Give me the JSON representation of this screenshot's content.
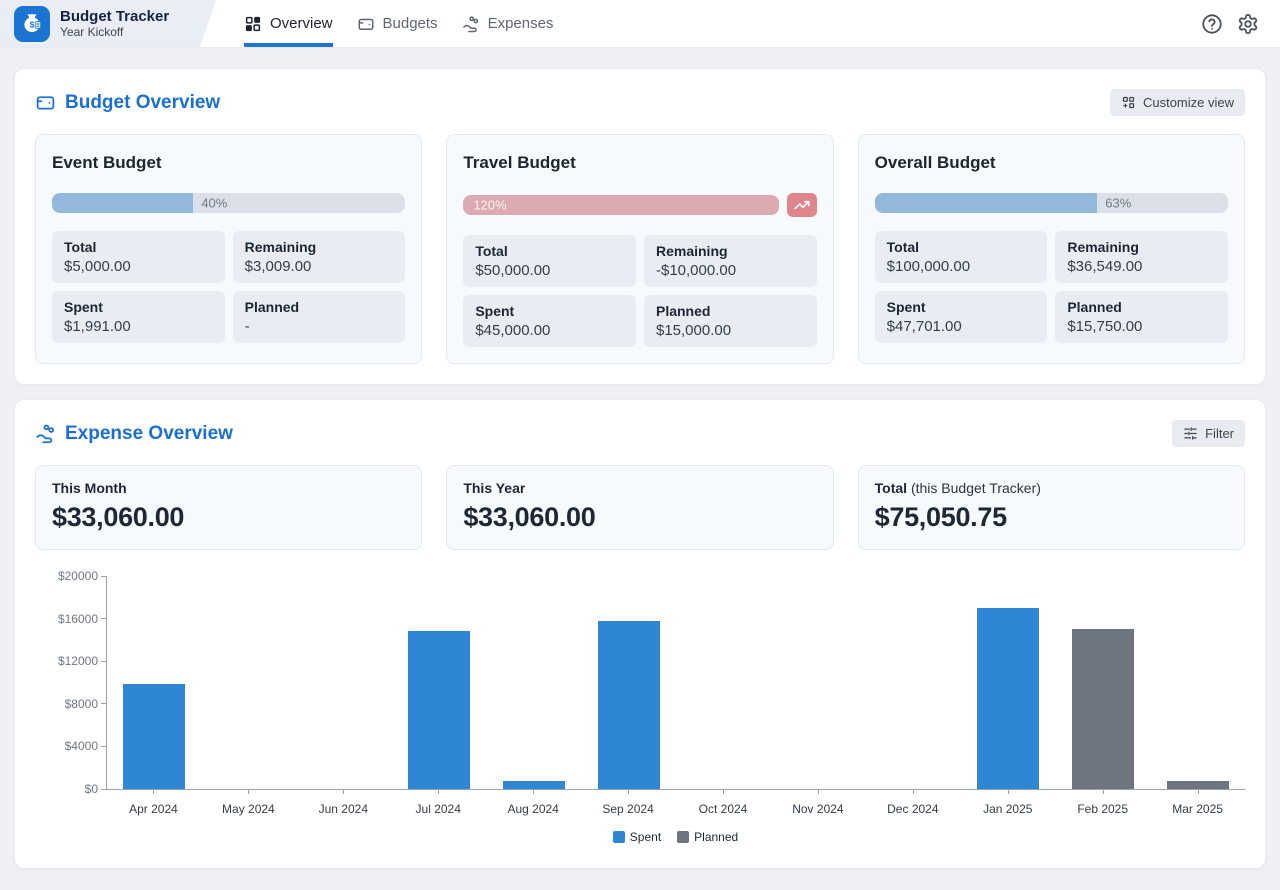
{
  "colors": {
    "accent_blue": "#1a6fd0",
    "logo_blue": "#1b74d2",
    "tab_underline": "#1b74d6",
    "progress_fill_blue": "#94b7dc",
    "progress_fill_over": "#dcaab1",
    "over_badge": "#df858c",
    "bar_spent": "#2e86d4",
    "bar_planned": "#6e7581"
  },
  "header": {
    "app_title": "Budget Tracker",
    "app_subtitle": "Year Kickoff",
    "tabs": [
      {
        "label": "Overview",
        "active": true
      },
      {
        "label": "Budgets",
        "active": false
      },
      {
        "label": "Expenses",
        "active": false
      }
    ]
  },
  "budget_overview": {
    "title": "Budget Overview",
    "customize_label": "Customize view",
    "cards": [
      {
        "title": "Event Budget",
        "percent": 40,
        "percent_label": "40%",
        "over_budget": false,
        "stats": [
          {
            "label": "Total",
            "value": "$5,000.00"
          },
          {
            "label": "Remaining",
            "value": "$3,009.00"
          },
          {
            "label": "Spent",
            "value": "$1,991.00"
          },
          {
            "label": "Planned",
            "value": "-"
          }
        ]
      },
      {
        "title": "Travel Budget",
        "percent": 120,
        "percent_label": "120%",
        "over_budget": true,
        "stats": [
          {
            "label": "Total",
            "value": "$50,000.00"
          },
          {
            "label": "Remaining",
            "value": "-$10,000.00"
          },
          {
            "label": "Spent",
            "value": "$45,000.00"
          },
          {
            "label": "Planned",
            "value": "$15,000.00"
          }
        ]
      },
      {
        "title": "Overall Budget",
        "percent": 63,
        "percent_label": "63%",
        "over_budget": false,
        "stats": [
          {
            "label": "Total",
            "value": "$100,000.00"
          },
          {
            "label": "Remaining",
            "value": "$36,549.00"
          },
          {
            "label": "Spent",
            "value": "$47,701.00"
          },
          {
            "label": "Planned",
            "value": "$15,750.00"
          }
        ]
      }
    ]
  },
  "expense_overview": {
    "title": "Expense Overview",
    "filter_label": "Filter",
    "summary_cards": [
      {
        "label": "This Month",
        "label_suffix": "",
        "value": "$33,060.00"
      },
      {
        "label": "This Year",
        "label_suffix": "",
        "value": "$33,060.00"
      },
      {
        "label": "Total",
        "label_suffix": " (this Budget Tracker)",
        "value": "$75,050.75"
      }
    ]
  },
  "chart_data": {
    "type": "bar",
    "title": "",
    "xlabel": "",
    "ylabel": "",
    "categories": [
      "Apr 2024",
      "May 2024",
      "Jun 2024",
      "Jul 2024",
      "Aug 2024",
      "Sep 2024",
      "Oct 2024",
      "Nov 2024",
      "Dec 2024",
      "Jan 2025",
      "Feb 2025",
      "Mar 2025"
    ],
    "series": [
      {
        "name": "Spent",
        "color": "#2e86d4",
        "values": [
          9900,
          0,
          0,
          14800,
          750,
          15750,
          0,
          0,
          0,
          17000,
          0,
          0
        ]
      },
      {
        "name": "Planned",
        "color": "#6e7581",
        "values": [
          0,
          0,
          0,
          0,
          0,
          0,
          0,
          0,
          0,
          0,
          15000,
          750
        ]
      }
    ],
    "ylim": [
      0,
      20000
    ],
    "ytick_step": 4000,
    "ytick_labels": [
      "$0",
      "$4000",
      "$8000",
      "$12000",
      "$16000",
      "$20000"
    ],
    "grid": false,
    "legend_position": "bottom"
  }
}
